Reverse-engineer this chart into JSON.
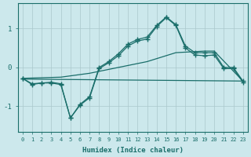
{
  "xlabel": "Humidex (Indice chaleur)",
  "ylabel": "",
  "bg_color": "#cce8ec",
  "grid_color": "#aac8cc",
  "line_color": "#1a6e6a",
  "xlim": [
    -0.5,
    23.5
  ],
  "ylim": [
    -1.65,
    1.65
  ],
  "yticks": [
    -1,
    0,
    1
  ],
  "xticks": [
    0,
    1,
    2,
    3,
    4,
    5,
    6,
    7,
    8,
    9,
    10,
    11,
    12,
    13,
    14,
    15,
    16,
    17,
    18,
    19,
    20,
    21,
    22,
    23
  ],
  "curve1_x": [
    0,
    1,
    2,
    3,
    4,
    5,
    6,
    7,
    8,
    9,
    10,
    11,
    12,
    13,
    14,
    15,
    16,
    17,
    18,
    19,
    20,
    21,
    22,
    23
  ],
  "curve1_y": [
    -0.28,
    -0.42,
    -0.4,
    -0.38,
    -0.42,
    -1.3,
    -0.95,
    -0.75,
    0.0,
    0.15,
    0.35,
    0.6,
    0.72,
    0.78,
    1.08,
    1.3,
    1.1,
    0.55,
    0.38,
    0.38,
    0.38,
    0.0,
    0.0,
    -0.35
  ],
  "curve2_x": [
    0,
    1,
    2,
    3,
    4,
    5,
    6,
    7,
    8,
    9,
    10,
    11,
    12,
    13,
    14,
    15,
    16,
    17,
    18,
    19,
    20,
    21,
    22,
    23
  ],
  "curve2_y": [
    -0.28,
    -0.44,
    -0.4,
    -0.4,
    -0.44,
    -1.3,
    -0.97,
    -0.78,
    -0.03,
    0.12,
    0.3,
    0.55,
    0.68,
    0.73,
    1.05,
    1.28,
    1.08,
    0.5,
    0.32,
    0.3,
    0.32,
    -0.03,
    -0.03,
    -0.38
  ],
  "flat_line_x": [
    0,
    23
  ],
  "flat_line_y": [
    -0.3,
    -0.35
  ],
  "diagonal_x": [
    0,
    4,
    7,
    10,
    13,
    16,
    19,
    20,
    23
  ],
  "diagonal_y": [
    -0.28,
    -0.25,
    -0.15,
    0.0,
    0.15,
    0.38,
    0.42,
    0.42,
    -0.35
  ]
}
